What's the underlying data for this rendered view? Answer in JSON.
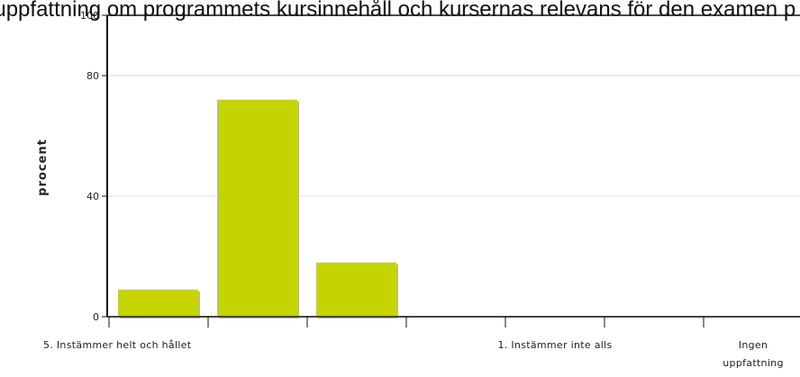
{
  "title": "ag uppfattning om programmets kursinnehåll och kursernas relevans för den examen p",
  "chart_data": {
    "type": "bar",
    "ylabel": "procent",
    "xlabel": "",
    "ylim": [
      0,
      100
    ],
    "yticks": [
      0,
      40,
      80,
      100
    ],
    "grid": true,
    "categories": [
      "5. Instämmer helt och hållet",
      "",
      "",
      "",
      "1. Instämmer inte alls",
      "",
      "Ingen uppfattning"
    ],
    "category_label_lines": [
      [
        "5. Instämmer helt och hållet"
      ],
      [],
      [],
      [],
      [
        "1. Instämmer inte alls"
      ],
      [],
      [
        "Ingen",
        "uppfattning"
      ]
    ],
    "values": [
      9,
      72,
      18,
      0,
      0,
      0,
      0
    ],
    "bar_color": "#c5d400",
    "bar_shadow_color": "#b7b7b7"
  }
}
